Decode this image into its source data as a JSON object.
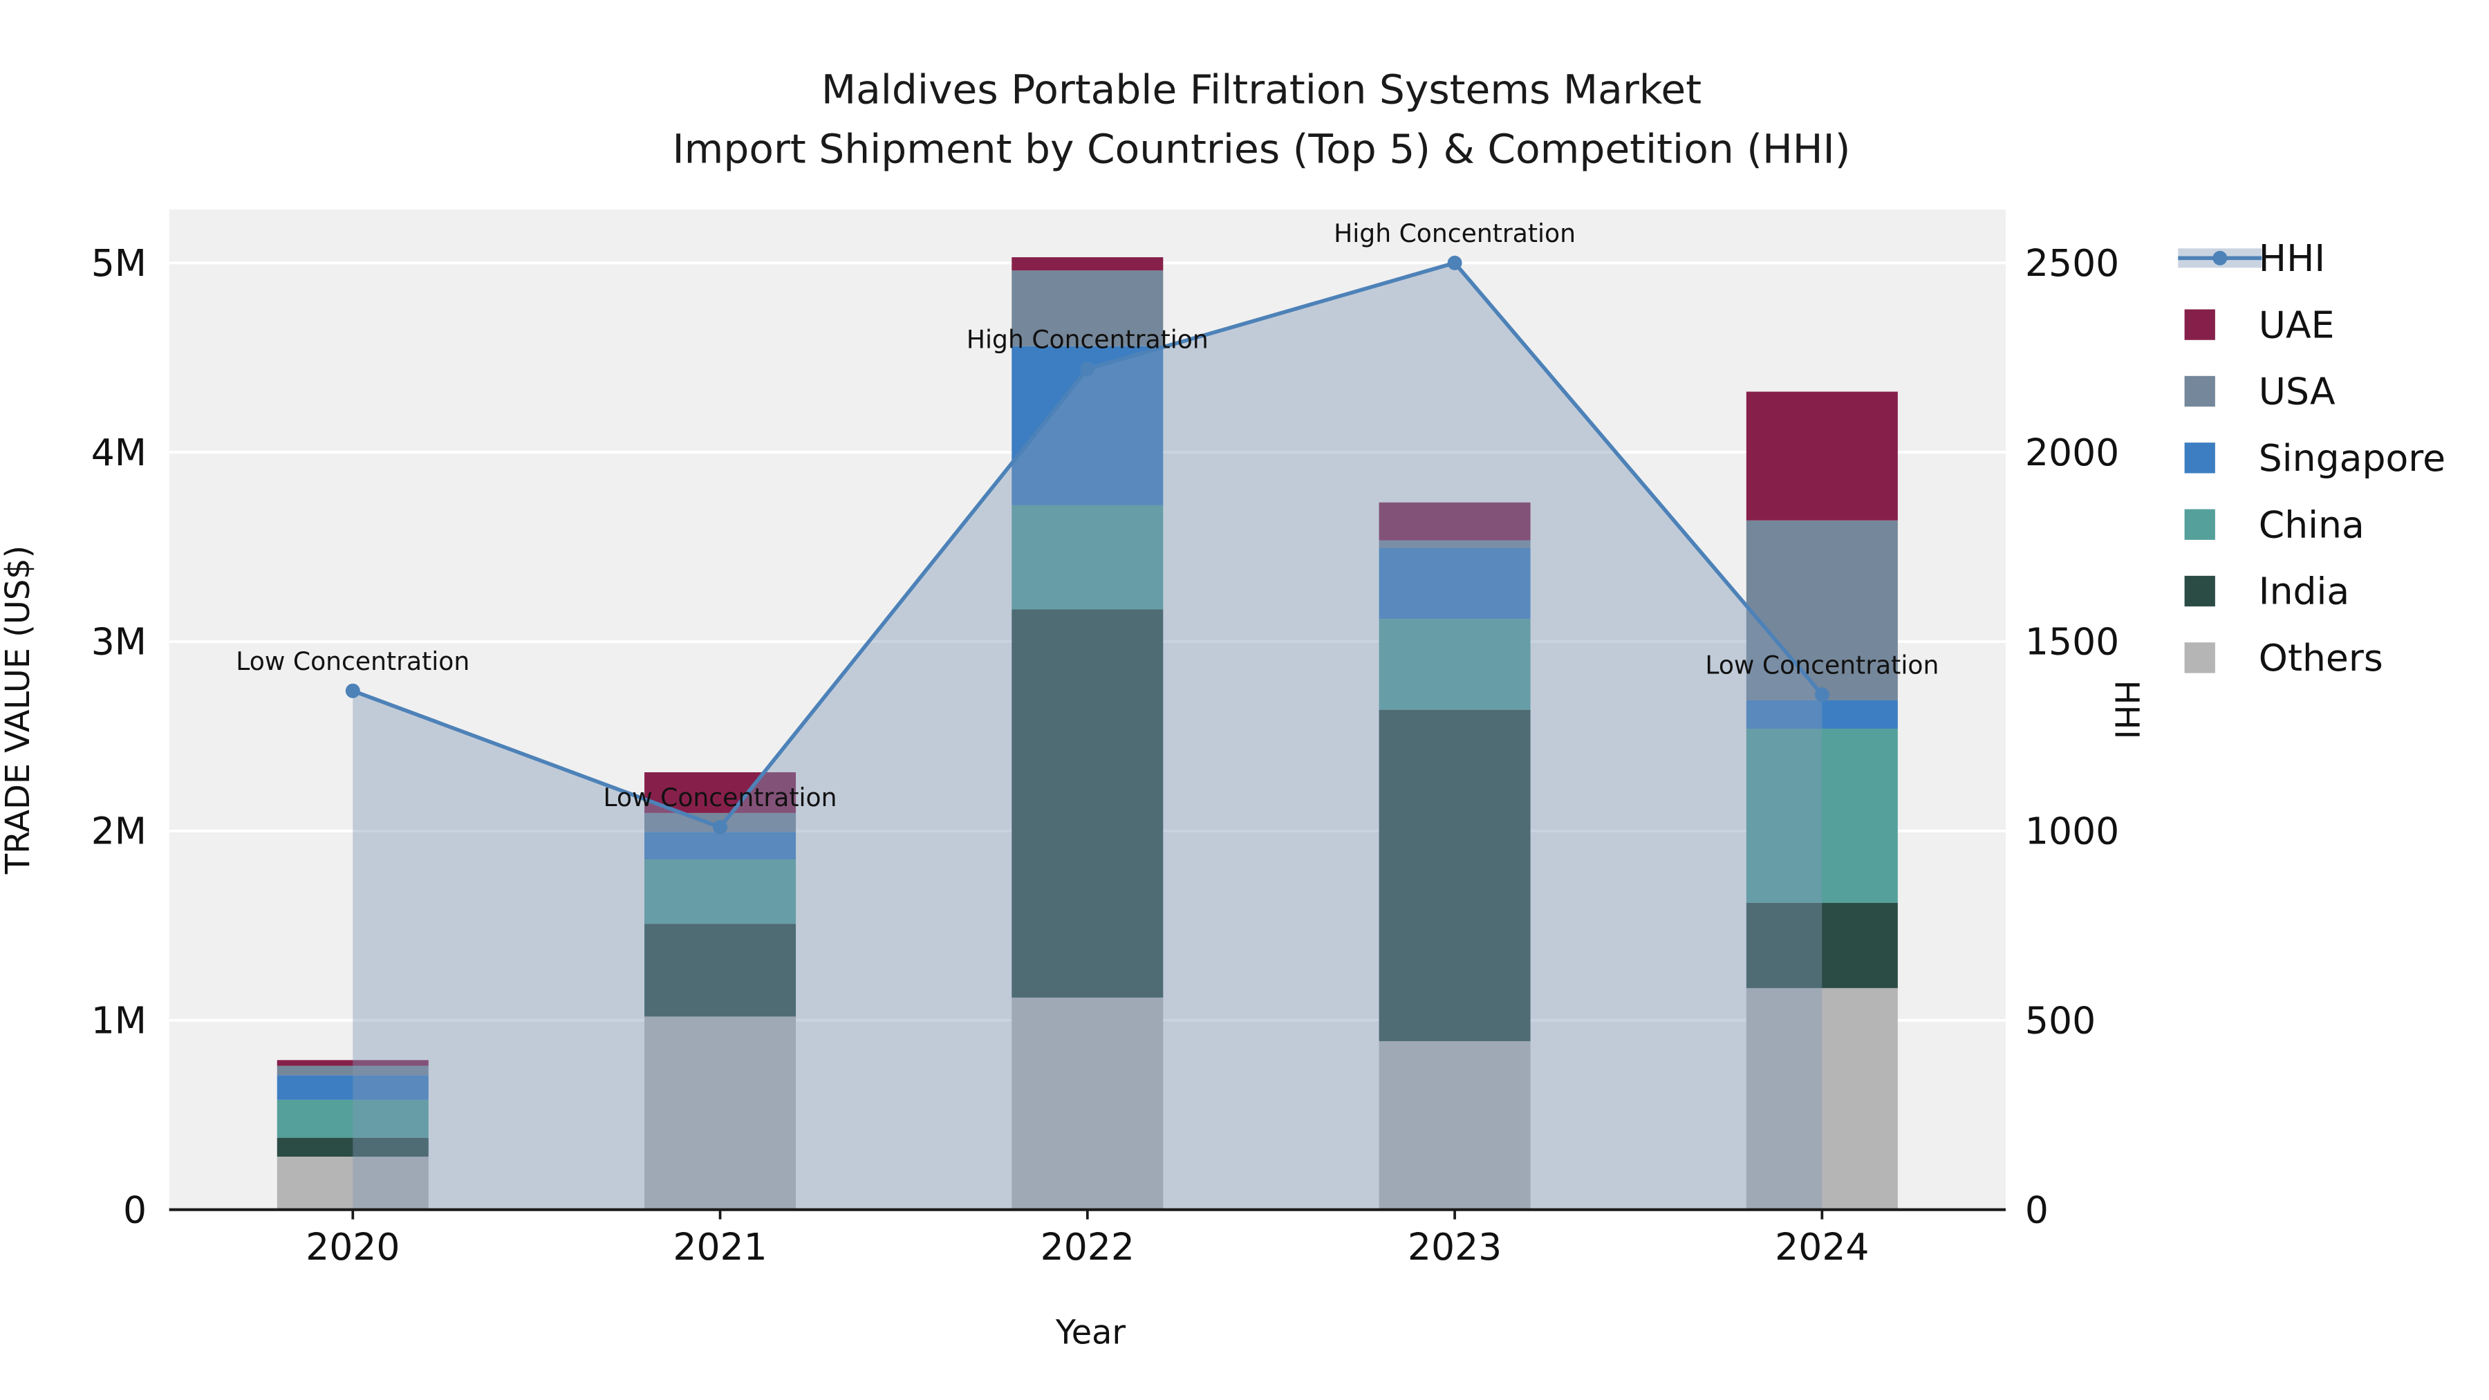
{
  "chart_data": {
    "type": "bar+line",
    "title": "Maldives Portable Filtration Systems Market",
    "subtitle": "Import Shipment by Countries (Top 5) & Competition (HHI)",
    "xlabel": "Year",
    "ylabel_left": "TRADE VALUE (US$)",
    "ylabel_right": "HHI",
    "categories": [
      "2020",
      "2021",
      "2022",
      "2023",
      "2024"
    ],
    "axis_left": {
      "range": [
        0,
        5280000
      ],
      "ticks": [
        {
          "value": 0,
          "label": "0"
        },
        {
          "value": 1000000,
          "label": "1M"
        },
        {
          "value": 2000000,
          "label": "2M"
        },
        {
          "value": 3000000,
          "label": "3M"
        },
        {
          "value": 4000000,
          "label": "4M"
        },
        {
          "value": 5000000,
          "label": "5M"
        }
      ]
    },
    "axis_right": {
      "range": [
        0,
        2640
      ],
      "ticks": [
        {
          "value": 0,
          "label": "0"
        },
        {
          "value": 500,
          "label": "500"
        },
        {
          "value": 1000,
          "label": "1000"
        },
        {
          "value": 1500,
          "label": "1500"
        },
        {
          "value": 2000,
          "label": "2000"
        },
        {
          "value": 2500,
          "label": "2500"
        }
      ]
    },
    "bar_series": [
      {
        "name": "Others",
        "color": "#b5b5b5",
        "values": [
          280000,
          1020000,
          1120000,
          890000,
          1170000
        ]
      },
      {
        "name": "India",
        "color": "#2b4c45",
        "values": [
          100000,
          490000,
          2050000,
          1750000,
          450000
        ]
      },
      {
        "name": "China",
        "color": "#55a09b",
        "values": [
          200000,
          340000,
          550000,
          480000,
          920000
        ]
      },
      {
        "name": "Singapore",
        "color": "#3d7ec2",
        "values": [
          130000,
          145000,
          840000,
          375000,
          150000
        ]
      },
      {
        "name": "USA",
        "color": "#75879a",
        "values": [
          50000,
          100000,
          400000,
          40000,
          950000
        ]
      },
      {
        "name": "UAE",
        "color": "#86204a",
        "values": [
          30000,
          215000,
          70000,
          200000,
          680000
        ]
      }
    ],
    "line_series": {
      "name": "HHI",
      "color": "#4d82b8",
      "fill": "rgba(128,152,183,0.42)",
      "values": [
        1370,
        1010,
        2220,
        2500,
        1360
      ]
    },
    "annotations": [
      {
        "x_index": 0,
        "text": "Low Concentration"
      },
      {
        "x_index": 1,
        "text": "Low Concentration"
      },
      {
        "x_index": 2,
        "text": "High Concentration"
      },
      {
        "x_index": 3,
        "text": "High Concentration"
      },
      {
        "x_index": 4,
        "text": "Low Concentration"
      }
    ],
    "legend_order": [
      "HHI",
      "UAE",
      "USA",
      "Singapore",
      "China",
      "India",
      "Others"
    ]
  }
}
